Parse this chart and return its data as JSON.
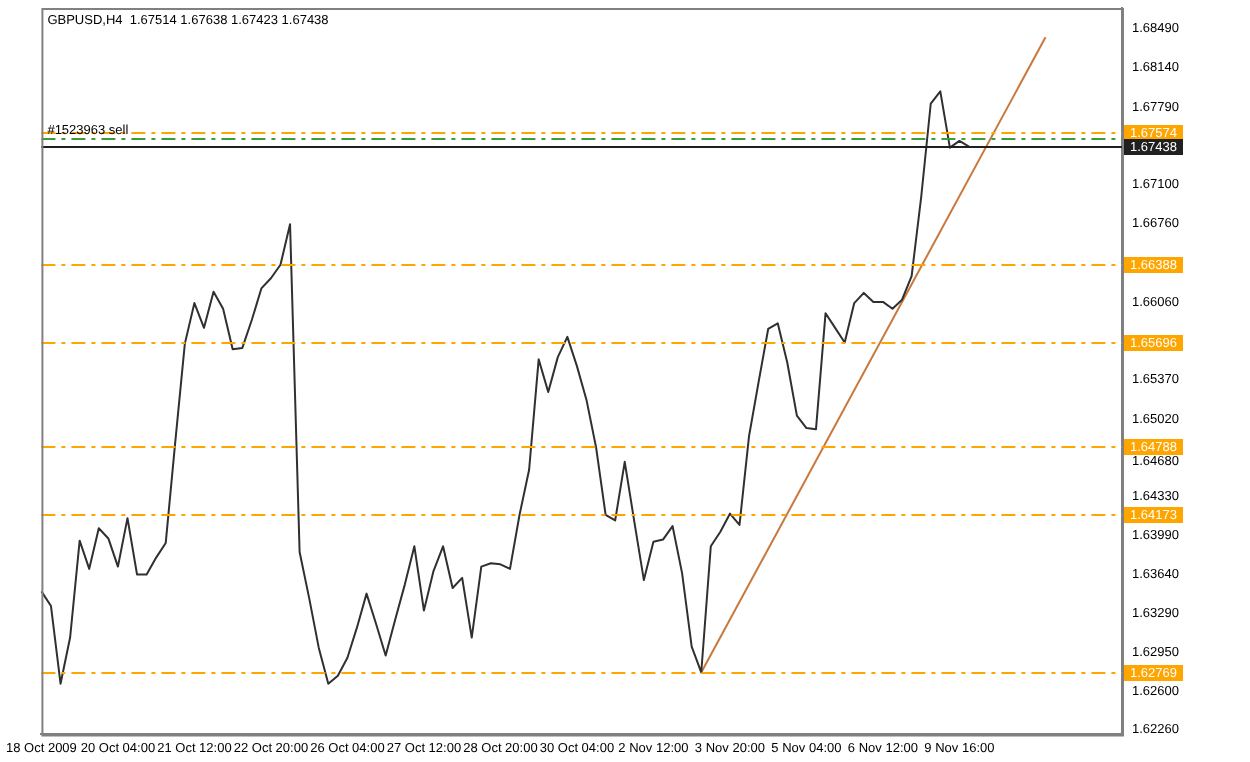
{
  "chart_data": {
    "type": "line",
    "title": "GBPUSD,H4  1.67514 1.67638 1.67423 1.67438",
    "categories": [
      "18 Oct 2009",
      null,
      null,
      null,
      null,
      null,
      null,
      null,
      "20 Oct 04:00",
      null,
      null,
      null,
      null,
      null,
      null,
      null,
      "21 Oct 12:00",
      null,
      null,
      null,
      null,
      null,
      null,
      null,
      "22 Oct 20:00",
      null,
      null,
      null,
      null,
      null,
      null,
      null,
      "26 Oct 04:00",
      null,
      null,
      null,
      null,
      null,
      null,
      null,
      "27 Oct 12:00",
      null,
      null,
      null,
      null,
      null,
      null,
      null,
      "28 Oct 20:00",
      null,
      null,
      null,
      null,
      null,
      null,
      null,
      "30 Oct 04:00",
      null,
      null,
      null,
      null,
      null,
      null,
      null,
      "2 Nov 12:00",
      null,
      null,
      null,
      null,
      null,
      null,
      null,
      "3 Nov 20:00",
      null,
      null,
      null,
      null,
      null,
      null,
      null,
      "5 Nov 04:00",
      null,
      null,
      null,
      null,
      null,
      null,
      null,
      "6 Nov 12:00",
      null,
      null,
      null,
      null,
      null,
      null,
      null,
      "9 Nov 16:00",
      null,
      null,
      null,
      null,
      null,
      null,
      null,
      null,
      null,
      null,
      null,
      null,
      null,
      null,
      null,
      null,
      null
    ],
    "series": [
      {
        "color": "#303030",
        "values": [
          1.6349,
          1.6336,
          1.6267,
          1.6308,
          1.6394,
          1.6369,
          1.6405,
          1.6396,
          1.6371,
          1.6414,
          1.6364,
          1.6364,
          1.6379,
          1.6392,
          1.6482,
          1.6569,
          1.6605,
          1.6583,
          1.6615,
          1.66,
          1.6564,
          1.6565,
          1.659,
          1.6618,
          1.6627,
          1.6639,
          1.6675,
          1.6384,
          1.6343,
          1.6299,
          1.6267,
          1.6274,
          1.629,
          1.6317,
          1.6347,
          1.632,
          1.6292,
          1.6324,
          1.6355,
          1.6389,
          1.6332,
          1.6367,
          1.6389,
          1.6352,
          1.6361,
          1.6308,
          1.6371,
          1.6374,
          1.6373,
          1.6369,
          1.6417,
          1.6457,
          1.6555,
          1.6526,
          1.6557,
          1.6575,
          1.6549,
          1.6519,
          1.6477,
          1.6417,
          1.6412,
          1.6464,
          1.6411,
          1.6359,
          1.6393,
          1.6395,
          1.6407,
          1.6365,
          1.63,
          1.6277,
          1.6389,
          1.6402,
          1.6418,
          1.6408,
          1.6487,
          1.6535,
          1.6582,
          1.6587,
          1.6552,
          1.6505,
          1.6494,
          1.6493,
          1.6596,
          1.6583,
          1.657,
          1.6605,
          1.6614,
          1.6606,
          1.6606,
          1.66,
          1.6608,
          1.6629,
          1.6699,
          1.6782,
          1.6793,
          1.6743,
          1.6749,
          1.6744,
          null,
          null,
          null,
          null,
          null,
          null,
          null,
          null,
          null,
          null,
          null,
          null,
          null,
          null,
          null,
          null
        ]
      },
      {
        "color": "#c8783c",
        "values": [
          null,
          null,
          null,
          null,
          null,
          null,
          null,
          null,
          null,
          null,
          null,
          null,
          null,
          null,
          null,
          null,
          null,
          null,
          null,
          null,
          null,
          null,
          null,
          null,
          null,
          null,
          null,
          null,
          null,
          null,
          null,
          null,
          null,
          null,
          null,
          null,
          null,
          null,
          null,
          null,
          null,
          null,
          null,
          null,
          null,
          null,
          null,
          null,
          null,
          null,
          null,
          null,
          null,
          null,
          null,
          null,
          null,
          null,
          null,
          null,
          null,
          null,
          null,
          null,
          null,
          null,
          null,
          null,
          null,
          1.6277,
          null,
          null,
          null,
          null,
          null,
          null,
          null,
          null,
          null,
          null,
          null,
          null,
          null,
          null,
          null,
          null,
          null,
          null,
          null,
          null,
          null,
          null,
          null,
          null,
          null,
          null,
          null,
          null,
          null,
          null,
          null,
          null,
          null,
          null,
          null,
          1.6841,
          null,
          null,
          null,
          null,
          null,
          null,
          null,
          null
        ]
      }
    ],
    "ylim": [
      1.6222,
      1.6867
    ],
    "yticks": [
      {
        "value": 1.6849,
        "label": "1.68490"
      },
      {
        "value": 1.6814,
        "label": "1.68140"
      },
      {
        "value": 1.6779,
        "label": "1.67790"
      },
      {
        "value": 1.671,
        "label": "1.67100"
      },
      {
        "value": 1.6676,
        "label": "1.66760"
      },
      {
        "value": 1.6606,
        "label": "1.66060"
      },
      {
        "value": 1.6537,
        "label": "1.65370"
      },
      {
        "value": 1.6502,
        "label": "1.65020"
      },
      {
        "value": 1.6468,
        "label": "1.64680"
      },
      {
        "value": 1.6433,
        "label": "1.64330"
      },
      {
        "value": 1.6399,
        "label": "1.63990"
      },
      {
        "value": 1.6364,
        "label": "1.63640"
      },
      {
        "value": 1.6329,
        "label": "1.63290"
      },
      {
        "value": 1.6295,
        "label": "1.62950"
      },
      {
        "value": 1.626,
        "label": "1.62600"
      },
      {
        "value": 1.6226,
        "label": "1.62260"
      }
    ],
    "ref_lines": [
      {
        "axis": "y",
        "value": 1.67574,
        "label": "1.67574",
        "color": "#ffa500",
        "line_style": "dashed"
      },
      {
        "axis": "y",
        "value": 1.66388,
        "label": "1.66388",
        "color": "#ffa500",
        "line_style": "dashed"
      },
      {
        "axis": "y",
        "value": 1.65696,
        "label": "1.65696",
        "color": "#ffa500",
        "line_style": "dashed"
      },
      {
        "axis": "y",
        "value": 1.64788,
        "label": "1.64788",
        "color": "#ffa500",
        "line_style": "dashed"
      },
      {
        "axis": "y",
        "value": 1.64173,
        "label": "1.64173",
        "color": "#ffa500",
        "line_style": "dashed"
      },
      {
        "axis": "y",
        "value": 1.62769,
        "label": "1.62769",
        "color": "#ffa500",
        "line_style": "dashed"
      },
      {
        "axis": "y",
        "value": 1.6751,
        "color": "#3c9c3c",
        "line_style": "dashed"
      },
      {
        "axis": "y",
        "value": 1.67438,
        "label": "1.67438",
        "color": "#202020",
        "line_style": "solid"
      }
    ],
    "annotations": [
      {
        "text": "#1523963 sell",
        "x": "18 Oct 2009",
        "y": 1.6751
      }
    ],
    "grid": false,
    "legend": false,
    "marker": "none"
  }
}
